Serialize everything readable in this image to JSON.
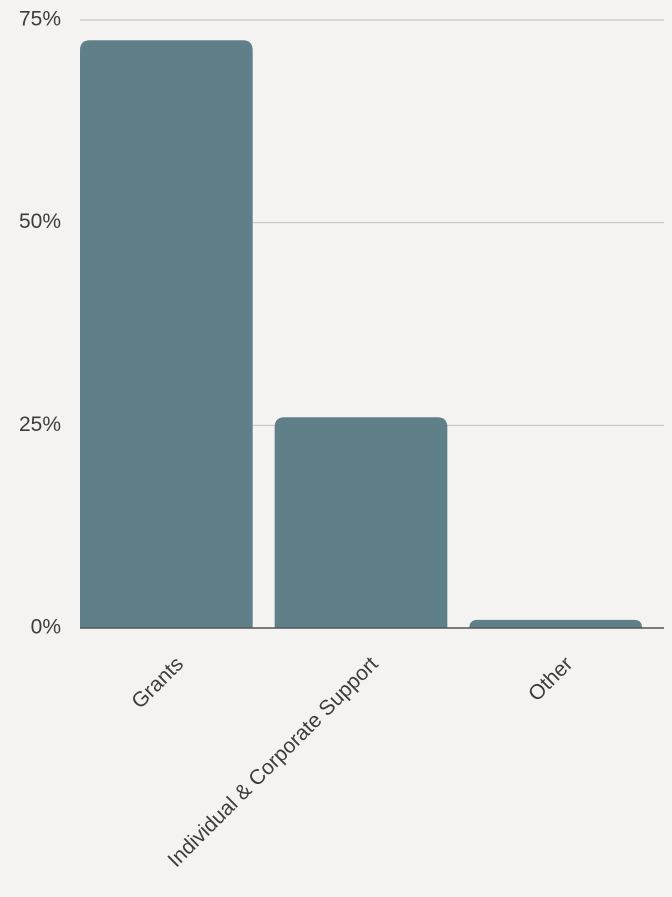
{
  "chart_data": {
    "type": "bar",
    "categories": [
      "Grants",
      "Individual & Corporate Support",
      "Other"
    ],
    "values": [
      72.5,
      26,
      1
    ],
    "yticks": [
      "0%",
      "25%",
      "50%",
      "75%"
    ],
    "ytick_values": [
      0,
      25,
      50,
      75
    ],
    "ylim": [
      0,
      75
    ],
    "grid": true,
    "colors": {
      "bar": "#5f8088",
      "background": "#f4f3f1",
      "grid": "#bdbdbd",
      "text": "#3d3d3d"
    }
  }
}
